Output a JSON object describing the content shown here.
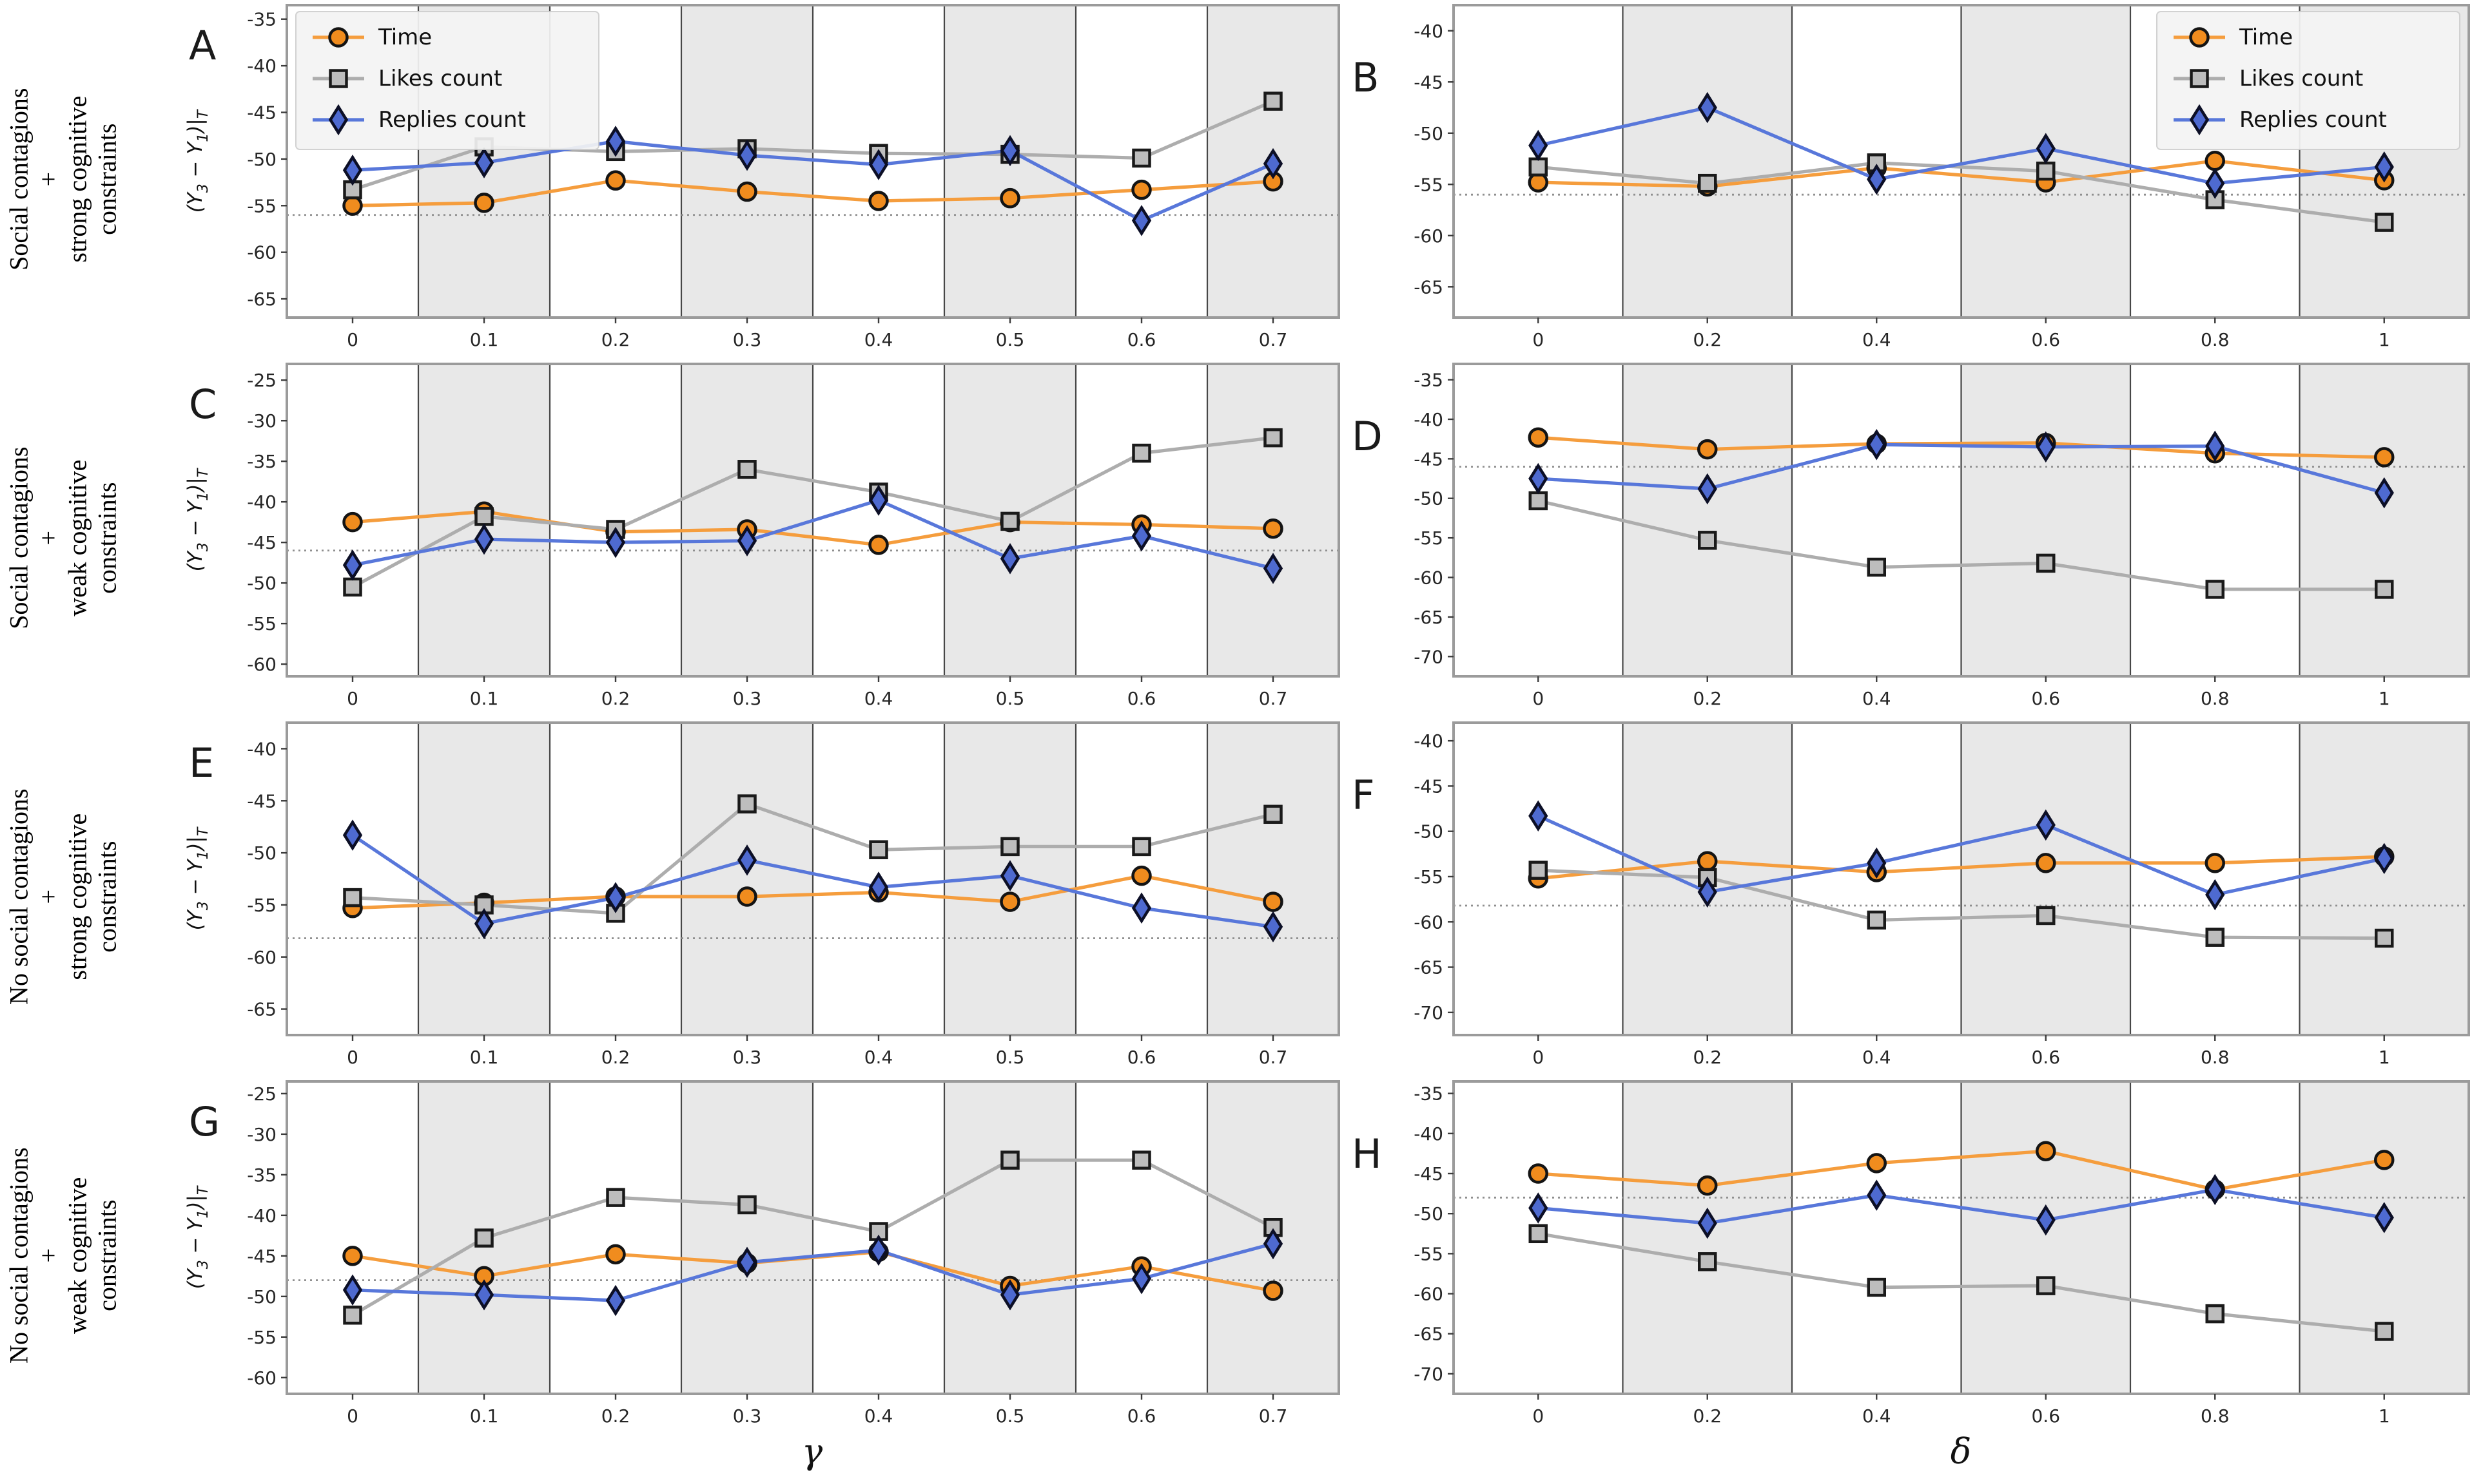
{
  "figure": {
    "row_labels": [
      {
        "top": "Social contagions",
        "plus": "+",
        "bottom1": "strong cognitive",
        "bottom2": "constraints"
      },
      {
        "top": "Social contagions",
        "plus": "+",
        "bottom1": "weak cognitive",
        "bottom2": "constraints"
      },
      {
        "top": "No social contagions",
        "plus": "+",
        "bottom1": "strong cognitive",
        "bottom2": "constraints"
      },
      {
        "top": "No social contagions",
        "plus": "+",
        "bottom1": "weak cognitive",
        "bottom2": "constraints"
      }
    ],
    "xlabel_left": "γ",
    "xlabel_right": "δ",
    "ylabel_segments": [
      [
        "(Y",
        false
      ],
      [
        "3",
        true
      ],
      [
        " − Y",
        false
      ],
      [
        "1",
        true
      ],
      [
        ")|",
        false
      ],
      [
        "T",
        true
      ]
    ],
    "legend": {
      "entries": [
        {
          "series": "time",
          "label": "Time"
        },
        {
          "series": "likes",
          "label": "Likes count"
        },
        {
          "series": "replies",
          "label": "Replies count"
        }
      ]
    },
    "colors": {
      "band_gray": "#e8e8e8",
      "band_white": "#ffffff",
      "separator": "#474747",
      "border": "#9b9b9b",
      "dashed": "#8f8f8f",
      "tick_text": "#262626",
      "time_line": "#F59D3D",
      "time_fill": "#F08C1E",
      "time_edge": "#141414",
      "likes_line": "#ADADAD",
      "likes_fill": "#BDBDBD",
      "likes_edge": "#1a1a1a",
      "replies_line": "#5877DA",
      "replies_fill": "#4E6AD0",
      "replies_edge": "#0c0f26",
      "legend_bg": "#f4f4f4",
      "legend_border": "#cfcfcf"
    }
  },
  "chart_data": [
    {
      "id": "A",
      "type": "line",
      "col": "left",
      "legend": "upper-left",
      "ylabel": true,
      "x": [
        0,
        0.1,
        0.2,
        0.3,
        0.4,
        0.5,
        0.6,
        0.7
      ],
      "xlim": [
        -0.05,
        0.75
      ],
      "xtick_labels": [
        "0",
        "0.1",
        "0.2",
        "0.3",
        "0.4",
        "0.5",
        "0.6",
        "0.7"
      ],
      "ylim": [
        -67,
        -33.5
      ],
      "yticks": [
        -35,
        -40,
        -45,
        -50,
        -55,
        -60,
        -65
      ],
      "ytick_labels": [
        "-35",
        "-40",
        "-45",
        "-50",
        "-55",
        "-60",
        "-65"
      ],
      "baseline": -56,
      "series": [
        {
          "key": "time",
          "name": "Time",
          "values": [
            -55,
            -54.7,
            -52.3,
            -53.5,
            -54.5,
            -54.2,
            -53.3,
            -52.4
          ]
        },
        {
          "key": "likes",
          "name": "Likes count",
          "values": [
            -53.3,
            -48.7,
            -49.2,
            -48.9,
            -49.4,
            -49.5,
            -49.9,
            -43.8
          ]
        },
        {
          "key": "replies",
          "name": "Replies count",
          "values": [
            -51.2,
            -50.4,
            -48.1,
            -49.6,
            -50.6,
            -49.1,
            -56.6,
            -50.5
          ]
        }
      ]
    },
    {
      "id": "B",
      "type": "line",
      "col": "right",
      "legend": "upper-right",
      "ylabel": false,
      "x": [
        0,
        0.2,
        0.4,
        0.6,
        0.8,
        1
      ],
      "xlim": [
        -0.1,
        1.1
      ],
      "xtick_labels": [
        "0",
        "0.2",
        "0.4",
        "0.6",
        "0.8",
        "1"
      ],
      "ylim": [
        -68,
        -37.5
      ],
      "yticks": [
        -40,
        -45,
        -50,
        -55,
        -60,
        -65
      ],
      "ytick_labels": [
        "-40",
        "-45",
        "-50",
        "-55",
        "-60",
        "-65"
      ],
      "baseline": -56,
      "series": [
        {
          "key": "time",
          "name": "Time",
          "values": [
            -54.8,
            -55.2,
            -53.4,
            -54.8,
            -52.7,
            -54.6
          ]
        },
        {
          "key": "likes",
          "name": "Likes count",
          "values": [
            -53.3,
            -54.9,
            -52.9,
            -53.7,
            -56.5,
            -58.7
          ]
        },
        {
          "key": "replies",
          "name": "Replies count",
          "values": [
            -51.2,
            -47.5,
            -54.5,
            -51.5,
            -54.9,
            -53.3
          ]
        }
      ]
    },
    {
      "id": "C",
      "type": "line",
      "col": "left",
      "legend": null,
      "ylabel": true,
      "x": [
        0,
        0.1,
        0.2,
        0.3,
        0.4,
        0.5,
        0.6,
        0.7
      ],
      "xlim": [
        -0.05,
        0.75
      ],
      "xtick_labels": [
        "0",
        "0.1",
        "0.2",
        "0.3",
        "0.4",
        "0.5",
        "0.6",
        "0.7"
      ],
      "ylim": [
        -61.5,
        -23
      ],
      "yticks": [
        -25,
        -30,
        -35,
        -40,
        -45,
        -50,
        -55,
        -60
      ],
      "ytick_labels": [
        "-25",
        "-30",
        "-35",
        "-40",
        "-45",
        "-50",
        "-55",
        "-60"
      ],
      "baseline": -46,
      "series": [
        {
          "key": "time",
          "name": "Time",
          "values": [
            -42.5,
            -41.2,
            -43.7,
            -43.4,
            -45.3,
            -42.5,
            -42.8,
            -43.3
          ]
        },
        {
          "key": "likes",
          "name": "Likes count",
          "values": [
            -50.5,
            -41.8,
            -43.4,
            -36,
            -38.8,
            -42.4,
            -34,
            -32.1
          ]
        },
        {
          "key": "replies",
          "name": "Replies count",
          "values": [
            -47.8,
            -44.6,
            -45,
            -44.8,
            -39.8,
            -47,
            -44.2,
            -48.2
          ]
        }
      ]
    },
    {
      "id": "D",
      "type": "line",
      "col": "right",
      "legend": null,
      "ylabel": false,
      "x": [
        0,
        0.2,
        0.4,
        0.6,
        0.8,
        1
      ],
      "xlim": [
        -0.1,
        1.1
      ],
      "xtick_labels": [
        "0",
        "0.2",
        "0.4",
        "0.6",
        "0.8",
        "1"
      ],
      "ylim": [
        -72.5,
        -33
      ],
      "yticks": [
        -35,
        -40,
        -45,
        -50,
        -55,
        -60,
        -65,
        -70
      ],
      "ytick_labels": [
        "-35",
        "-40",
        "-45",
        "-50",
        "-55",
        "-60",
        "-65",
        "-70"
      ],
      "baseline": -46,
      "series": [
        {
          "key": "time",
          "name": "Time",
          "values": [
            -42.3,
            -43.8,
            -43.1,
            -43,
            -44.3,
            -44.8
          ]
        },
        {
          "key": "likes",
          "name": "Likes count",
          "values": [
            -50.3,
            -55.3,
            -58.7,
            -58.2,
            -61.5,
            -61.5
          ]
        },
        {
          "key": "replies",
          "name": "Replies count",
          "values": [
            -47.5,
            -48.8,
            -43.2,
            -43.5,
            -43.4,
            -49.3
          ]
        }
      ]
    },
    {
      "id": "E",
      "type": "line",
      "col": "left",
      "legend": null,
      "ylabel": true,
      "x": [
        0,
        0.1,
        0.2,
        0.3,
        0.4,
        0.5,
        0.6,
        0.7
      ],
      "xlim": [
        -0.05,
        0.75
      ],
      "xtick_labels": [
        "0",
        "0.1",
        "0.2",
        "0.3",
        "0.4",
        "0.5",
        "0.6",
        "0.7"
      ],
      "ylim": [
        -67.5,
        -37.5
      ],
      "yticks": [
        -40,
        -45,
        -50,
        -55,
        -60,
        -65
      ],
      "ytick_labels": [
        "-40",
        "-45",
        "-50",
        "-55",
        "-60",
        "-65"
      ],
      "baseline": -58.2,
      "series": [
        {
          "key": "time",
          "name": "Time",
          "values": [
            -55.3,
            -54.8,
            -54.2,
            -54.2,
            -53.8,
            -54.7,
            -52.2,
            -54.7
          ]
        },
        {
          "key": "likes",
          "name": "Likes count",
          "values": [
            -54.3,
            -55,
            -55.8,
            -45.3,
            -49.7,
            -49.4,
            -49.4,
            -46.3
          ]
        },
        {
          "key": "replies",
          "name": "Replies count",
          "values": [
            -48.3,
            -56.8,
            -54.3,
            -50.7,
            -53.3,
            -52.2,
            -55.3,
            -57.1
          ]
        }
      ]
    },
    {
      "id": "F",
      "type": "line",
      "col": "right",
      "legend": null,
      "ylabel": false,
      "x": [
        0,
        0.2,
        0.4,
        0.6,
        0.8,
        1
      ],
      "xlim": [
        -0.1,
        1.1
      ],
      "xtick_labels": [
        "0",
        "0.2",
        "0.4",
        "0.6",
        "0.8",
        "1"
      ],
      "ylim": [
        -72.5,
        -38
      ],
      "yticks": [
        -40,
        -45,
        -50,
        -55,
        -60,
        -65,
        -70
      ],
      "ytick_labels": [
        "-40",
        "-45",
        "-50",
        "-55",
        "-60",
        "-65",
        "-70"
      ],
      "baseline": -58.2,
      "series": [
        {
          "key": "time",
          "name": "Time",
          "values": [
            -55.2,
            -53.3,
            -54.5,
            -53.5,
            -53.5,
            -52.8
          ]
        },
        {
          "key": "likes",
          "name": "Likes count",
          "values": [
            -54.3,
            -55.1,
            -59.8,
            -59.3,
            -61.7,
            -61.8
          ]
        },
        {
          "key": "replies",
          "name": "Replies count",
          "values": [
            -48.3,
            -56.7,
            -53.5,
            -49.3,
            -57,
            -53
          ]
        }
      ]
    },
    {
      "id": "G",
      "type": "line",
      "col": "left",
      "legend": null,
      "ylabel": true,
      "x": [
        0,
        0.1,
        0.2,
        0.3,
        0.4,
        0.5,
        0.6,
        0.7
      ],
      "xlim": [
        -0.05,
        0.75
      ],
      "xtick_labels": [
        "0",
        "0.1",
        "0.2",
        "0.3",
        "0.4",
        "0.5",
        "0.6",
        "0.7"
      ],
      "ylim": [
        -62,
        -23.5
      ],
      "yticks": [
        -25,
        -30,
        -35,
        -40,
        -45,
        -50,
        -55,
        -60
      ],
      "ytick_labels": [
        "-25",
        "-30",
        "-35",
        "-40",
        "-45",
        "-50",
        "-55",
        "-60"
      ],
      "baseline": -48,
      "series": [
        {
          "key": "time",
          "name": "Time",
          "values": [
            -45,
            -47.5,
            -44.8,
            -45.9,
            -44.5,
            -48.7,
            -46.3,
            -49.3
          ]
        },
        {
          "key": "likes",
          "name": "Likes count",
          "values": [
            -52.3,
            -42.8,
            -37.8,
            -38.7,
            -42,
            -33.2,
            -33.2,
            -41.5
          ]
        },
        {
          "key": "replies",
          "name": "Replies count",
          "values": [
            -49.2,
            -49.8,
            -50.5,
            -45.8,
            -44.3,
            -49.8,
            -47.8,
            -43.5
          ]
        }
      ]
    },
    {
      "id": "H",
      "type": "line",
      "col": "right",
      "legend": null,
      "ylabel": false,
      "x": [
        0,
        0.2,
        0.4,
        0.6,
        0.8,
        1
      ],
      "xlim": [
        -0.1,
        1.1
      ],
      "xtick_labels": [
        "0",
        "0.2",
        "0.4",
        "0.6",
        "0.8",
        "1"
      ],
      "ylim": [
        -72.5,
        -33.5
      ],
      "yticks": [
        -35,
        -40,
        -45,
        -50,
        -55,
        -60,
        -65,
        -70
      ],
      "ytick_labels": [
        "-35",
        "-40",
        "-45",
        "-50",
        "-55",
        "-60",
        "-65",
        "-70"
      ],
      "baseline": -48,
      "series": [
        {
          "key": "time",
          "name": "Time",
          "values": [
            -45,
            -46.5,
            -43.7,
            -42.2,
            -47,
            -43.3
          ]
        },
        {
          "key": "likes",
          "name": "Likes count",
          "values": [
            -52.5,
            -56,
            -59.2,
            -59,
            -62.5,
            -64.7
          ]
        },
        {
          "key": "replies",
          "name": "Replies count",
          "values": [
            -49.3,
            -51.2,
            -47.7,
            -50.8,
            -47,
            -50.5
          ]
        }
      ]
    }
  ]
}
